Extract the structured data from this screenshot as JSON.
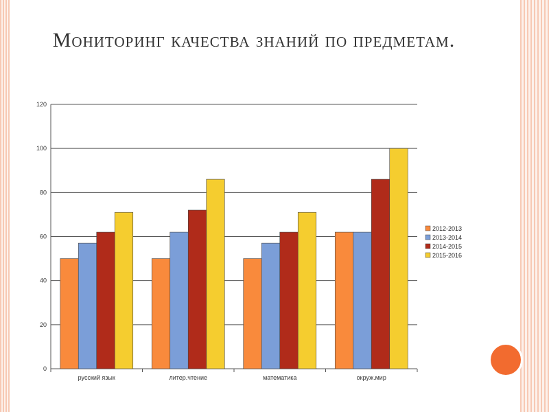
{
  "slide": {
    "title": "Мониторинг качества знаний по предметам."
  },
  "colors": {
    "border": "#f7c9b4",
    "accent": "#f26b2f"
  },
  "chart_data": {
    "type": "bar",
    "title": "",
    "xlabel": "",
    "ylabel": "",
    "ylim": [
      0,
      120
    ],
    "yticks": [
      0,
      20,
      40,
      60,
      80,
      100,
      120
    ],
    "grid": true,
    "legend_position": "right",
    "categories": [
      "русский язык",
      "литер.чтение",
      "математика",
      "окруж.мир"
    ],
    "series": [
      {
        "name": "2012-2013",
        "color": "#f98a3c",
        "values": [
          50,
          50,
          50,
          62
        ]
      },
      {
        "name": "2013-2014",
        "color": "#7b9ed8",
        "values": [
          57,
          62,
          57,
          62
        ]
      },
      {
        "name": "2014-2015",
        "color": "#b02b1a",
        "values": [
          62,
          72,
          62,
          86
        ]
      },
      {
        "name": "2015-2016",
        "color": "#f5cd2f",
        "values": [
          71,
          86,
          71,
          100
        ]
      }
    ]
  }
}
